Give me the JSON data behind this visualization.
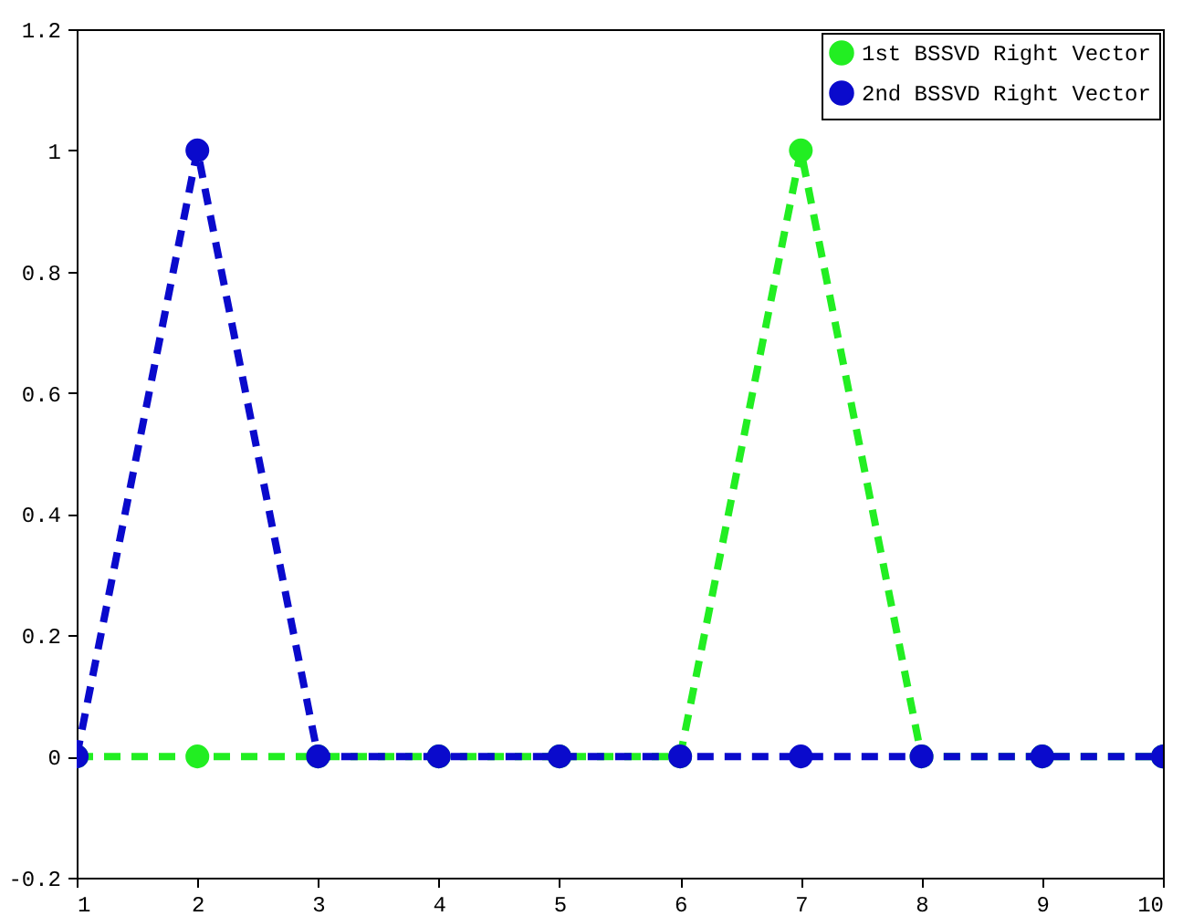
{
  "chart_data": {
    "type": "line",
    "x": [
      1,
      2,
      3,
      4,
      5,
      6,
      7,
      8,
      9,
      10
    ],
    "series": [
      {
        "name": "1st BSSVD Right Vector",
        "color": "#22ee22",
        "values": [
          0,
          0,
          0,
          0,
          0,
          0,
          1,
          0,
          0,
          0
        ]
      },
      {
        "name": "2nd BSSVD Right Vector",
        "color": "#0a0acc",
        "values": [
          0,
          1,
          0,
          0,
          0,
          0,
          0,
          0,
          0,
          0
        ]
      }
    ],
    "xlim": [
      1,
      10
    ],
    "xticks": [
      1,
      2,
      3,
      4,
      5,
      6,
      7,
      8,
      9,
      10
    ],
    "ylim": [
      -0.2,
      1.2
    ],
    "yticks": [
      -0.2,
      0,
      0.2,
      0.4,
      0.6,
      0.8,
      1,
      1.2
    ],
    "grid": false,
    "legend": "top right",
    "marker": "circle",
    "line_style": "dashed"
  }
}
